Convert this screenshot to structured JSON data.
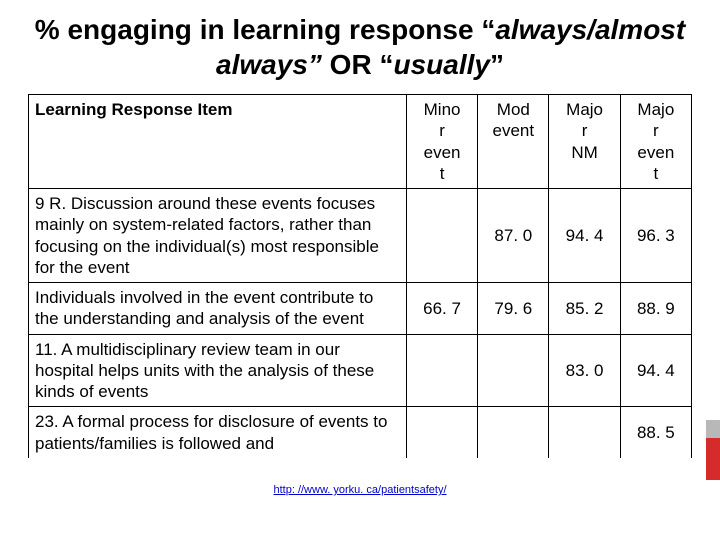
{
  "title": {
    "prefix": "% engaging in learning response “",
    "ital1": "always/almost always”",
    "mid": " OR “",
    "ital2": "usually",
    "suffix": "”"
  },
  "table": {
    "headers": {
      "item": "Learning Response Item",
      "c1": "Mino\nr\neven\nt",
      "c2": "Mod\nevent",
      "c3": "Majo\nr\nNM",
      "c4": "Majo\nr\neven\nt"
    },
    "rows": [
      {
        "item": "9 R. Discussion around these events focuses mainly on system-related factors, rather than focusing on the individual(s) most responsible for the event",
        "c1": "",
        "c2": "87. 0",
        "c3": "94. 4",
        "c4": "96. 3"
      },
      {
        "item": "Individuals involved in the event contribute to the understanding and analysis of the event",
        "c1": "66. 7",
        "c2": "79. 6",
        "c3": "85. 2",
        "c4": "88. 9"
      },
      {
        "item": "11. A multidisciplinary review team in our hospital helps units with the analysis of these kinds of events",
        "c1": "",
        "c2": "",
        "c3": "83. 0",
        "c4": "94. 4"
      },
      {
        "item": "23. A formal process for disclosure of events to patients/families is followed and",
        "c1": "",
        "c2": "",
        "c3": "",
        "c4": "88. 5"
      }
    ]
  },
  "footer": {
    "url_text": "http: //www. yorku. ca/patientsafety/"
  },
  "colors": {
    "text": "#000000",
    "border": "#000000",
    "link": "#0000cc",
    "side_gray": "#b8b8b8",
    "side_red": "#d62b2b",
    "bg": "#ffffff"
  }
}
